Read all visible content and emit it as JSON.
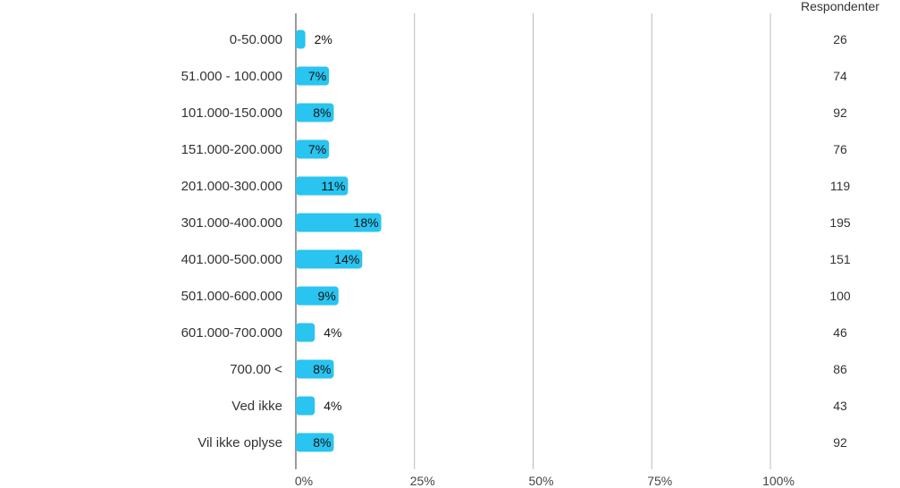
{
  "chart_data": {
    "type": "bar",
    "orientation": "horizontal",
    "categories": [
      "0-50.000",
      "51.000 - 100.000",
      "101.000-150.000",
      "151.000-200.000",
      "201.000-300.000",
      "301.000-400.000",
      "401.000-500.000",
      "501.000-600.000",
      "601.000-700.000",
      "700.00 <",
      "Ved ikke",
      "Vil ikke oplyse"
    ],
    "values": [
      2,
      7,
      8,
      7,
      11,
      18,
      14,
      9,
      4,
      8,
      4,
      8
    ],
    "value_labels": [
      "2%",
      "7%",
      "8%",
      "7%",
      "11%",
      "18%",
      "14%",
      "9%",
      "4%",
      "8%",
      "4%",
      "8%"
    ],
    "respondents_header": "Respondenter",
    "respondents": [
      "26",
      "74",
      "92",
      "76",
      "119",
      "195",
      "151",
      "100",
      "46",
      "86",
      "43",
      "92"
    ],
    "xlim": [
      0,
      100
    ],
    "xticks": [
      0,
      25,
      50,
      75,
      100
    ],
    "xtick_labels": [
      "0%",
      "25%",
      "50%",
      "75%",
      "100%"
    ],
    "grid": true,
    "bar_color": "#29c4f0",
    "grid_color": "#bbbbbb",
    "axis_color": "#999999"
  }
}
